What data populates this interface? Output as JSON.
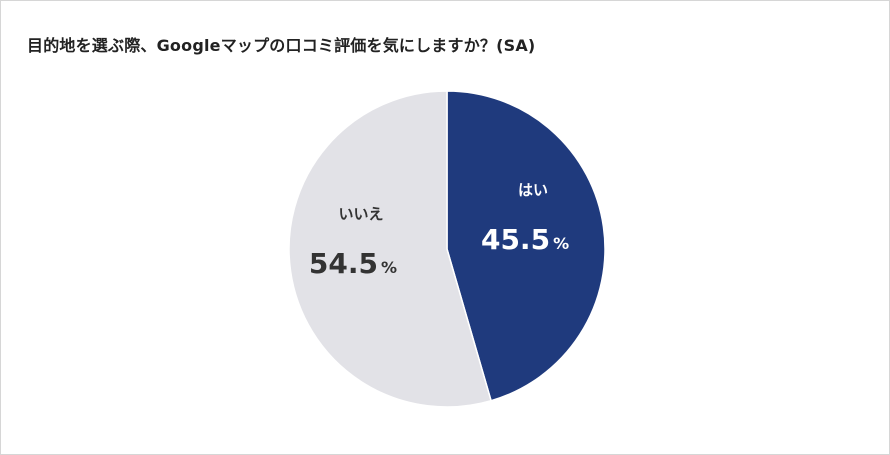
{
  "chart_data": {
    "type": "pie",
    "title": "目的地を選ぶ際、Googleマップの口コミ評価を気にしますか？(SA)",
    "slices": [
      {
        "label": "はい",
        "value": 45.5,
        "color": "#1f3a7d",
        "text_color": "#ffffff"
      },
      {
        "label": "いいえ",
        "value": 54.5,
        "color": "#e2e2e7",
        "text_color": "#333333"
      }
    ],
    "unit": "%",
    "start_angle": "12 o'clock",
    "direction": "clockwise"
  }
}
